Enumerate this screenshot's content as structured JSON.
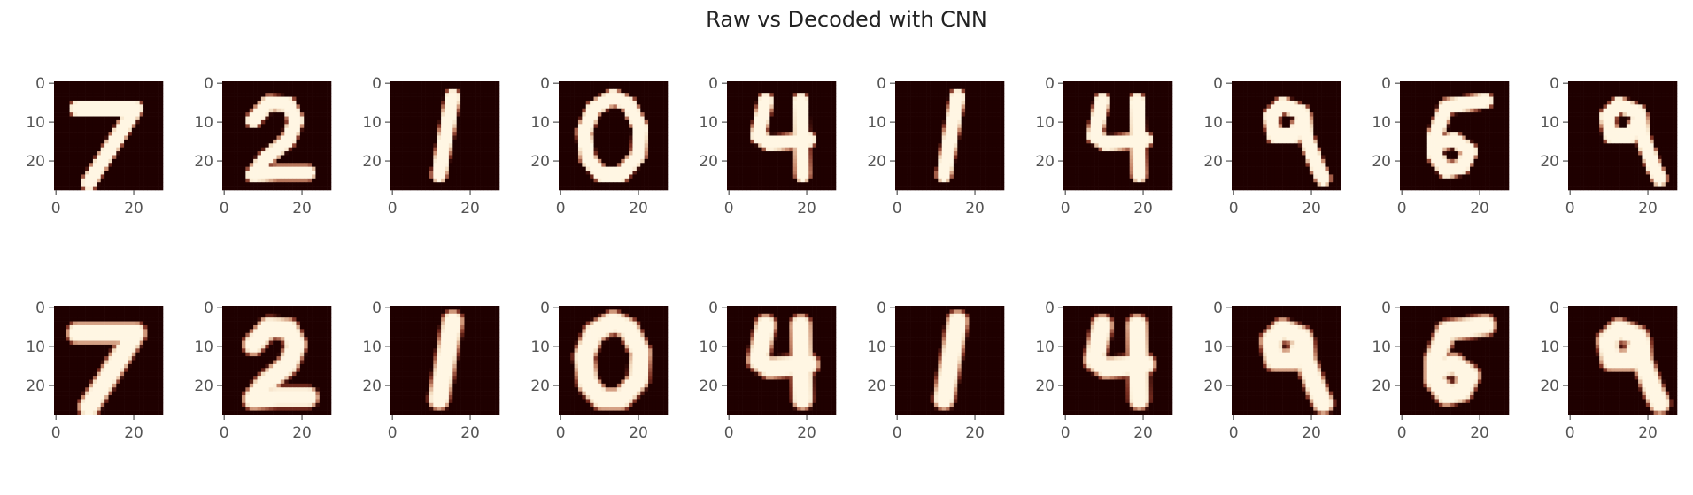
{
  "chart_data": {
    "type": "heatmap",
    "title": "Raw vs Decoded with CNN",
    "grid": false,
    "image_size": 28,
    "x_ticks": [
      0,
      20
    ],
    "y_ticks": [
      0,
      10,
      20
    ],
    "colormap": [
      "#1f0000",
      "#7a2e20",
      "#c98a6d",
      "#f3dcc0",
      "#fff6e3"
    ],
    "rows": [
      {
        "digits": [
          "7",
          "2",
          "1",
          "0",
          "4",
          "1",
          "4",
          "9",
          "5",
          "9"
        ]
      },
      {
        "digits": [
          "7",
          "2",
          "1",
          "0",
          "4",
          "1",
          "4",
          "9",
          "5",
          "9"
        ]
      }
    ]
  }
}
